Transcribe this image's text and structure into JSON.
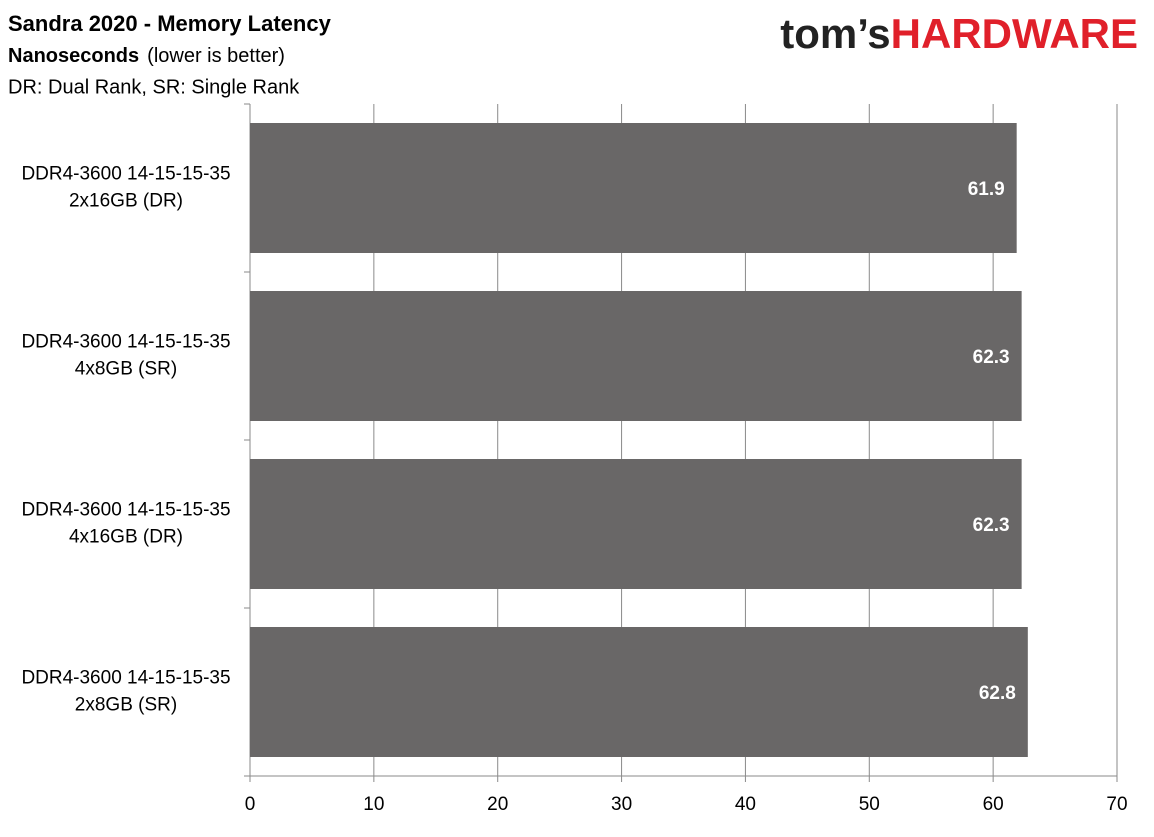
{
  "chart_data": {
    "type": "bar",
    "orientation": "horizontal",
    "title": "Sandra 2020 - Memory Latency",
    "subtitle": "Nanoseconds",
    "subtitle_note": "(lower is better)",
    "note": "DR: Dual Rank, SR: Single Rank",
    "logo": {
      "left": "tom’s",
      "right": "HARDWARE"
    },
    "categories": [
      [
        "DDR4-3600 14-15-15-35",
        "2x16GB (DR)"
      ],
      [
        "DDR4-3600 14-15-15-35",
        "4x8GB (SR)"
      ],
      [
        "DDR4-3600 14-15-15-35",
        "4x16GB (DR)"
      ],
      [
        "DDR4-3600 14-15-15-35",
        "2x8GB (SR)"
      ]
    ],
    "values": [
      61.9,
      62.3,
      62.3,
      62.8
    ],
    "color": "#696767",
    "xlim": [
      0,
      70
    ],
    "xticks": [
      0,
      10,
      20,
      30,
      40,
      50,
      60,
      70
    ],
    "grid": true
  }
}
